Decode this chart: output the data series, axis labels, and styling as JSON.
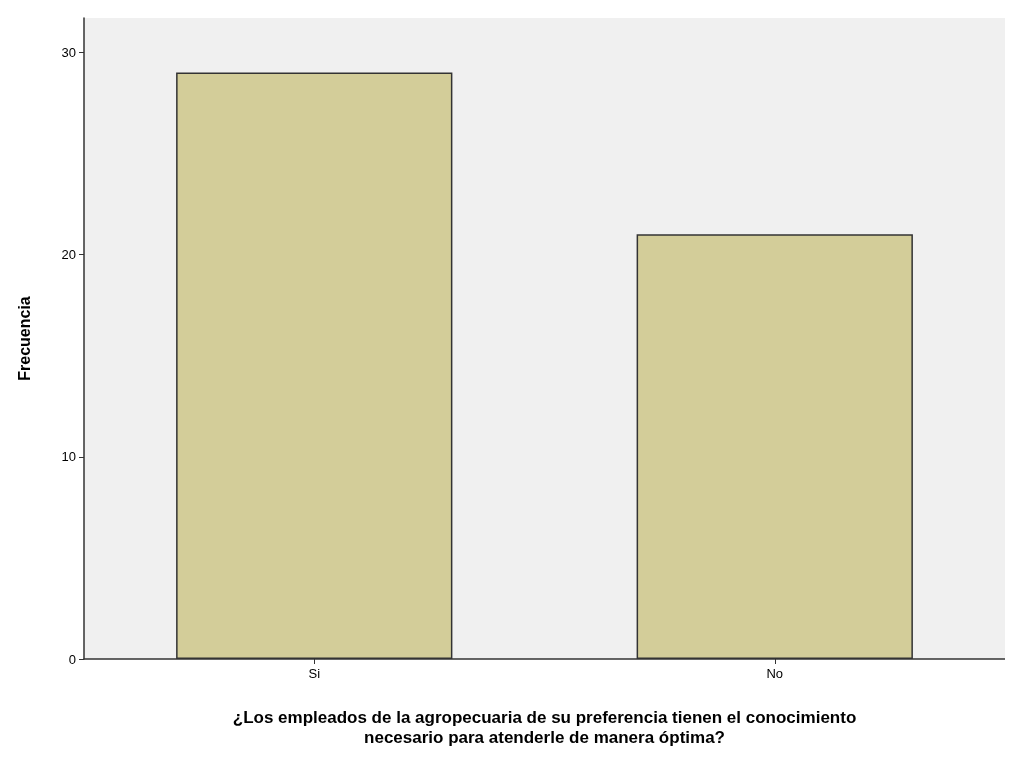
{
  "chart_data": {
    "type": "bar",
    "xlabel": "¿Los empleados de la agropecuaria de su preferencia tienen el conocimiento\nnecesario para atenderle de manera óptima?",
    "ylabel": "Frecuencia",
    "categories": [
      "Si",
      "No"
    ],
    "values": [
      29,
      21
    ],
    "color": "#d3cd99",
    "ylim": [
      0,
      31.7
    ],
    "yticks": [
      0,
      10,
      20,
      30
    ],
    "grid": false
  }
}
